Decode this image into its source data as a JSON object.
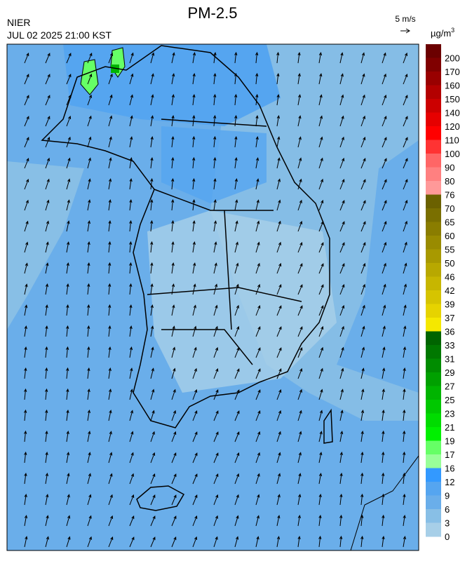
{
  "header": {
    "title": "PM-2.5",
    "agency": "NIER",
    "datetime": "JUL 02 2025 21:00 KST"
  },
  "wind_legend": {
    "label": "5 m/s"
  },
  "colorbar": {
    "unit": {
      "base": "µg/m",
      "sup": "3"
    },
    "labels": [
      "200",
      "170",
      "160",
      "150",
      "140",
      "120",
      "110",
      "100",
      "90",
      "80",
      "76",
      "70",
      "65",
      "60",
      "55",
      "50",
      "46",
      "42",
      "39",
      "37",
      "36",
      "33",
      "31",
      "29",
      "27",
      "25",
      "23",
      "21",
      "19",
      "17",
      "16",
      "12",
      "9",
      "6",
      "3",
      "0"
    ],
    "colors": [
      "#6b0000",
      "#800000",
      "#990000",
      "#b30000",
      "#cc0000",
      "#e60000",
      "#ff0000",
      "#ff3333",
      "#ff6666",
      "#ff8080",
      "#ff9999",
      "#6b6100",
      "#7a6f00",
      "#8a7d00",
      "#998b00",
      "#a89900",
      "#b8a800",
      "#c7b600",
      "#d6c400",
      "#e6d300",
      "#f5e800",
      "#006400",
      "#007800",
      "#008c00",
      "#00a000",
      "#00b400",
      "#00c800",
      "#00dc00",
      "#00f000",
      "#66ff66",
      "#99ff99",
      "#3399ff",
      "#55a5f0",
      "#6aaeea",
      "#88bfe6",
      "#a7cfe8"
    ]
  }
}
